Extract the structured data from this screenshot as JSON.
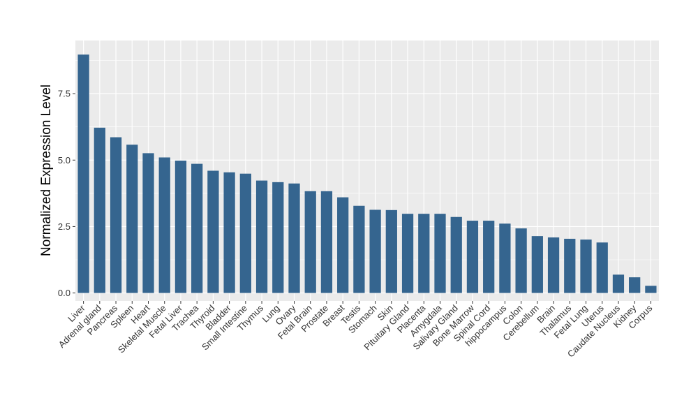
{
  "chart_data": {
    "type": "bar",
    "title": "",
    "xlabel": "",
    "ylabel": "Normalized Expression Level",
    "ylim": [
      -0.3,
      9.5
    ],
    "yticks": [
      0.0,
      2.5,
      5.0,
      7.5
    ],
    "ytick_labels": [
      "0.0",
      "2.5",
      "5.0",
      "7.5"
    ],
    "grid": true,
    "legend": "none",
    "bar_color": "#35658F",
    "panel_color": "#EBEBEB",
    "categories": [
      "Liver",
      "Adrenal gland",
      "Pancreas",
      "Spleen",
      "Heart",
      "Skeletal Muscle",
      "Fetal Liver",
      "Trachea",
      "Thyroid",
      "Bladder",
      "Small Intestine",
      "Thymus",
      "Lung",
      "Ovary",
      "Fetal Brain",
      "Prostate",
      "Breast",
      "Testis",
      "Stomach",
      "Skin",
      "Pituitary Gland",
      "Placenta",
      "Amygdala",
      "Salivary Gland",
      "Bone Marrow",
      "Spinal Cord",
      "hippocampus",
      "Colon",
      "Cerebellum",
      "Brain",
      "Thalamus",
      "Fetal Lung",
      "Uterus",
      "Caudate Nucleus",
      "Kidney",
      "Corpus"
    ],
    "values": [
      8.97,
      6.22,
      5.86,
      5.58,
      5.26,
      5.1,
      4.98,
      4.86,
      4.6,
      4.54,
      4.49,
      4.23,
      4.17,
      4.12,
      3.83,
      3.83,
      3.6,
      3.28,
      3.13,
      3.12,
      2.98,
      2.98,
      2.98,
      2.86,
      2.72,
      2.72,
      2.61,
      2.43,
      2.14,
      2.09,
      2.04,
      2.01,
      1.9,
      0.69,
      0.59,
      0.27
    ]
  }
}
